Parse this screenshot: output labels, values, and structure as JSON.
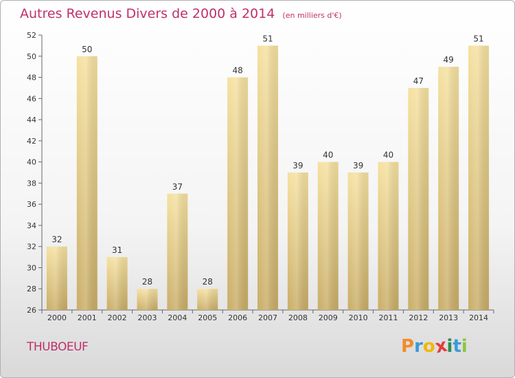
{
  "title": "Autres Revenus Divers de 2000 à 2014",
  "unit_note": "(en milliers d'€)",
  "commune": "THUBOEUF",
  "logo": {
    "letters": [
      "P",
      "r",
      "o",
      "x",
      "i",
      "t",
      "i"
    ],
    "colors": [
      "#f28c28",
      "#3b9ad9",
      "#f2b705",
      "#e23c3c",
      "#2e8b57",
      "#3b9ad9",
      "#8cc63f"
    ]
  },
  "chart_data": {
    "type": "bar",
    "categories": [
      "2000",
      "2001",
      "2002",
      "2003",
      "2004",
      "2005",
      "2006",
      "2007",
      "2008",
      "2009",
      "2010",
      "2011",
      "2012",
      "2013",
      "2014"
    ],
    "values": [
      32,
      50,
      31,
      28,
      37,
      28,
      48,
      51,
      39,
      40,
      39,
      40,
      47,
      49,
      51
    ],
    "ylim": [
      26,
      52
    ],
    "yticks": [
      26,
      28,
      30,
      32,
      34,
      36,
      38,
      40,
      42,
      44,
      46,
      48,
      50,
      52
    ],
    "grid": false,
    "bar_color": "#e9d089"
  }
}
